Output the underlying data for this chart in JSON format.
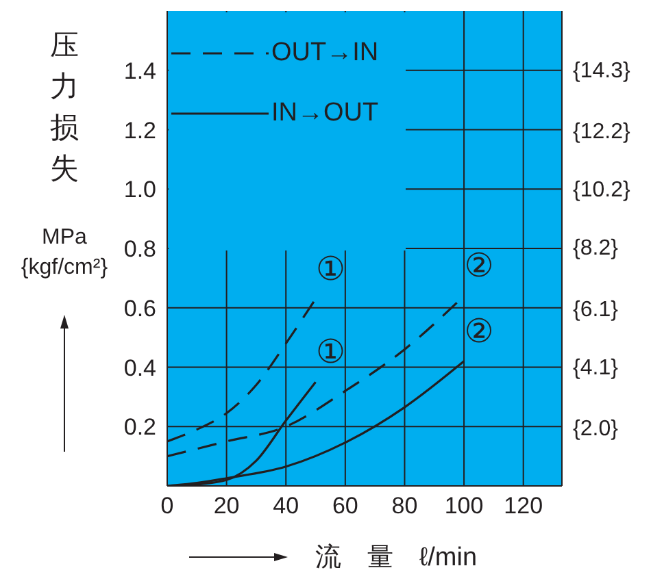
{
  "chart_data": {
    "type": "line",
    "xlabel": "流　量　ℓ/min",
    "ylabel": "压力损失 MPa {kgf/cm²}",
    "xlim": [
      0,
      133
    ],
    "xticks": [
      0,
      20,
      40,
      60,
      80,
      100,
      120
    ],
    "ylim": [
      0,
      1.6
    ],
    "yticks": [
      0.2,
      0.4,
      0.6,
      0.8,
      {
        "value": 1,
        "label": "1.0"
      },
      1.2,
      1.4
    ],
    "y2lim": [
      0,
      16.3
    ],
    "y2ticks": [
      {
        "value": 2.0,
        "label": "{2.0}"
      },
      {
        "value": 4.1,
        "label": "{4.1}"
      },
      {
        "value": 6.1,
        "label": "{6.1}"
      },
      {
        "value": 8.2,
        "label": "{8.2}"
      },
      {
        "value": 10.2,
        "label": "{10.2}"
      },
      {
        "value": 12.2,
        "label": "{12.2}"
      },
      {
        "value": 14.3,
        "label": "{14.3}"
      }
    ],
    "grid": true,
    "legend": "top left",
    "series": [
      {
        "name": "OUT→IN",
        "color": "#231f20",
        "line_style": "dashed",
        "x": [
          0,
          10,
          20,
          30,
          40,
          50
        ],
        "values": [
          0.15,
          0.19,
          0.245,
          0.34,
          0.48,
          0.63
        ]
      },
      {
        "name": "IN→OUT",
        "color": "#231f20",
        "line_style": "solid",
        "x": [
          0,
          10,
          20,
          30,
          40,
          50
        ],
        "values": [
          0,
          0.005,
          0.02,
          0.085,
          0.22,
          0.35
        ]
      },
      {
        "color": "#231f20",
        "line_style": "dashed",
        "x": [
          0,
          20,
          40,
          60,
          80,
          100
        ],
        "values": [
          0.1,
          0.15,
          0.2,
          0.32,
          0.46,
          0.64
        ]
      },
      {
        "color": "#231f20",
        "line_style": "solid",
        "x": [
          0,
          10,
          20,
          40,
          60,
          80,
          100
        ],
        "values": [
          0,
          0.01,
          0.026,
          0.065,
          0.146,
          0.265,
          0.42
        ]
      }
    ],
    "annotations": [
      "①",
      "①",
      "②",
      "②"
    ]
  }
}
